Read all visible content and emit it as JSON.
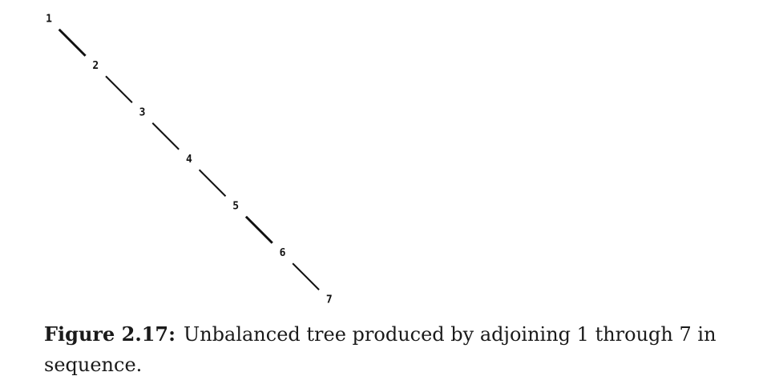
{
  "tree": {
    "nodes": [
      "1",
      "2",
      "3",
      "4",
      "5",
      "6",
      "7"
    ],
    "edges": [
      [
        "1",
        "2"
      ],
      [
        "2",
        "3"
      ],
      [
        "3",
        "4"
      ],
      [
        "4",
        "5"
      ],
      [
        "5",
        "6"
      ],
      [
        "6",
        "7"
      ]
    ]
  },
  "caption": {
    "label": "Figure 2.17:",
    "text": "Unbalanced tree produced by adjoining 1 through 7 in sequence."
  }
}
